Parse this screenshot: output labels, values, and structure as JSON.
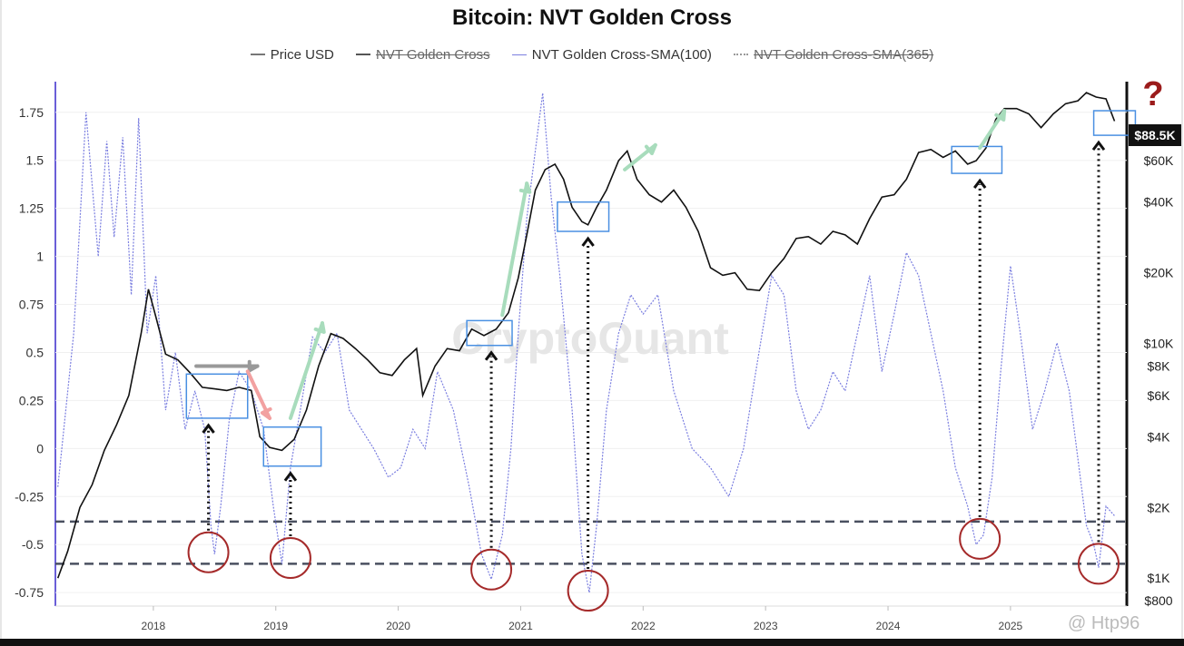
{
  "chart_data": {
    "type": "line",
    "title": "Bitcoin: NVT Golden Cross",
    "legend": [
      {
        "name": "Price USD",
        "hidden": false,
        "color": "#777777"
      },
      {
        "name": "NVT Golden Cross",
        "hidden": true,
        "color": "#555555"
      },
      {
        "name": "NVT Golden Cross-SMA(100)",
        "hidden": false,
        "color": "#7b7fe0"
      },
      {
        "name": "NVT Golden Cross-SMA(365)",
        "hidden": true,
        "color": "#9a9a9a"
      }
    ],
    "legend_position": "top",
    "x_ticks": [
      "2018",
      "2019",
      "2020",
      "2021",
      "2022",
      "2023",
      "2024",
      "2025"
    ],
    "xlim": [
      2017.2,
      2025.95
    ],
    "y_left_ticks": [
      "1.75",
      "1.5",
      "1.25",
      "1",
      "0.75",
      "0.5",
      "0.25",
      "0",
      "-0.25",
      "-0.5",
      "-0.75"
    ],
    "y_left_range": [
      -0.82,
      1.9
    ],
    "y_right_ticks": [
      "$60K",
      "$40K",
      "$20K",
      "$10K",
      "$8K",
      "$6K",
      "$4K",
      "$2K",
      "$1K",
      "$800"
    ],
    "y_right_values": [
      60000,
      40000,
      20000,
      10000,
      8000,
      6000,
      4000,
      2000,
      1000,
      800
    ],
    "y_right_scale": "log",
    "y_right_range": [
      760,
      128000
    ],
    "current_price_label": "$88.5K",
    "current_price": 88500,
    "threshold_lines": [
      -0.38,
      -0.6
    ],
    "series": [
      {
        "name": "NVT Golden Cross-SMA(100)",
        "axis": "left",
        "x": [
          2017.22,
          2017.35,
          2017.45,
          2017.55,
          2017.62,
          2017.68,
          2017.75,
          2017.82,
          2017.88,
          2017.95,
          2018.02,
          2018.1,
          2018.18,
          2018.26,
          2018.34,
          2018.42,
          2018.47,
          2018.5,
          2018.55,
          2018.62,
          2018.7,
          2018.8,
          2018.9,
          2018.98,
          2019.05,
          2019.12,
          2019.2,
          2019.3,
          2019.4,
          2019.5,
          2019.6,
          2019.7,
          2019.8,
          2019.92,
          2020.02,
          2020.12,
          2020.22,
          2020.32,
          2020.45,
          2020.58,
          2020.68,
          2020.76,
          2020.85,
          2020.92,
          2020.98,
          2021.05,
          2021.12,
          2021.18,
          2021.25,
          2021.32,
          2021.42,
          2021.5,
          2021.56,
          2021.62,
          2021.7,
          2021.8,
          2021.9,
          2022.0,
          2022.12,
          2022.25,
          2022.4,
          2022.55,
          2022.7,
          2022.82,
          2022.92,
          2023.05,
          2023.15,
          2023.25,
          2023.35,
          2023.45,
          2023.55,
          2023.65,
          2023.75,
          2023.85,
          2023.95,
          2024.05,
          2024.15,
          2024.25,
          2024.35,
          2024.45,
          2024.55,
          2024.65,
          2024.72,
          2024.78,
          2024.85,
          2024.92,
          2025.0,
          2025.08,
          2025.18,
          2025.28,
          2025.38,
          2025.48,
          2025.56,
          2025.62,
          2025.68,
          2025.72,
          2025.78,
          2025.85
        ],
        "values": [
          -0.2,
          0.6,
          1.75,
          1.0,
          1.6,
          1.1,
          1.62,
          0.8,
          1.72,
          0.6,
          0.9,
          0.2,
          0.5,
          0.1,
          0.3,
          0.1,
          -0.4,
          -0.55,
          -0.3,
          0.15,
          0.4,
          0.3,
          0.1,
          -0.3,
          -0.6,
          -0.1,
          0.2,
          0.58,
          0.5,
          0.6,
          0.2,
          0.1,
          0.0,
          -0.15,
          -0.1,
          0.1,
          0.0,
          0.4,
          0.2,
          -0.2,
          -0.55,
          -0.68,
          -0.45,
          0.0,
          0.6,
          1.2,
          1.55,
          1.85,
          1.3,
          0.9,
          0.2,
          -0.55,
          -0.75,
          -0.4,
          0.2,
          0.6,
          0.8,
          0.7,
          0.8,
          0.3,
          0.0,
          -0.1,
          -0.25,
          0.0,
          0.4,
          0.9,
          0.8,
          0.3,
          0.1,
          0.2,
          0.4,
          0.3,
          0.6,
          0.9,
          0.4,
          0.7,
          1.02,
          0.9,
          0.6,
          0.3,
          -0.1,
          -0.3,
          -0.5,
          -0.45,
          -0.15,
          0.4,
          0.95,
          0.6,
          0.1,
          0.3,
          0.55,
          0.3,
          -0.1,
          -0.4,
          -0.5,
          -0.62,
          -0.3,
          -0.35
        ]
      },
      {
        "name": "Price USD",
        "axis": "right",
        "x": [
          2017.22,
          2017.3,
          2017.4,
          2017.5,
          2017.6,
          2017.7,
          2017.8,
          2017.9,
          2017.96,
          2018.02,
          2018.1,
          2018.2,
          2018.3,
          2018.4,
          2018.5,
          2018.6,
          2018.7,
          2018.8,
          2018.87,
          2018.95,
          2019.05,
          2019.15,
          2019.25,
          2019.35,
          2019.45,
          2019.55,
          2019.65,
          2019.75,
          2019.85,
          2019.95,
          2020.05,
          2020.15,
          2020.2,
          2020.3,
          2020.4,
          2020.5,
          2020.6,
          2020.7,
          2020.8,
          2020.9,
          2020.98,
          2021.05,
          2021.12,
          2021.2,
          2021.28,
          2021.35,
          2021.42,
          2021.5,
          2021.55,
          2021.62,
          2021.7,
          2021.8,
          2021.87,
          2021.95,
          2022.05,
          2022.15,
          2022.25,
          2022.35,
          2022.45,
          2022.55,
          2022.65,
          2022.75,
          2022.85,
          2022.95,
          2023.05,
          2023.15,
          2023.25,
          2023.35,
          2023.45,
          2023.55,
          2023.65,
          2023.75,
          2023.85,
          2023.95,
          2024.05,
          2024.15,
          2024.25,
          2024.35,
          2024.45,
          2024.55,
          2024.65,
          2024.72,
          2024.8,
          2024.88,
          2024.95,
          2025.05,
          2025.15,
          2025.25,
          2025.35,
          2025.45,
          2025.55,
          2025.62,
          2025.7,
          2025.78,
          2025.85
        ],
        "values": [
          1000,
          1300,
          2000,
          2500,
          3500,
          4500,
          6000,
          11000,
          17000,
          13000,
          9000,
          8500,
          7500,
          6500,
          6400,
          6300,
          6500,
          6300,
          4000,
          3600,
          3500,
          3900,
          5200,
          8000,
          11000,
          10500,
          9500,
          8500,
          7500,
          7300,
          8500,
          9500,
          6000,
          8000,
          9500,
          9300,
          11500,
          10800,
          11500,
          13500,
          19000,
          29000,
          45000,
          55000,
          58000,
          50000,
          38000,
          33000,
          32000,
          38000,
          45000,
          60000,
          66000,
          50000,
          43000,
          40000,
          45000,
          38000,
          30000,
          21000,
          19500,
          20000,
          17000,
          16800,
          20000,
          23000,
          28000,
          28500,
          26500,
          30000,
          29000,
          26500,
          34000,
          42000,
          43000,
          50000,
          65000,
          67000,
          62000,
          66000,
          58000,
          60000,
          68000,
          90000,
          100000,
          100000,
          95000,
          83000,
          95000,
          105000,
          108000,
          117000,
          112000,
          110000,
          88500
        ]
      }
    ],
    "annotations": {
      "watermark": "CryptoQuant",
      "question_mark": "?",
      "credit": "@ Htp96",
      "trough_circles": [
        {
          "x": 2018.45,
          "y": -0.54
        },
        {
          "x": 2019.12,
          "y": -0.57
        },
        {
          "x": 2020.76,
          "y": -0.63
        },
        {
          "x": 2021.55,
          "y": -0.74
        },
        {
          "x": 2024.75,
          "y": -0.47
        },
        {
          "x": 2025.72,
          "y": -0.6
        }
      ],
      "price_boxes": [
        {
          "x0": 2018.27,
          "x1": 2018.77,
          "p0": 4800,
          "p1": 7400
        },
        {
          "x0": 2018.9,
          "x1": 2019.37,
          "p0": 3000,
          "p1": 4400
        },
        {
          "x0": 2020.56,
          "x1": 2020.93,
          "p0": 9800,
          "p1": 12500
        },
        {
          "x0": 2021.3,
          "x1": 2021.72,
          "p0": 30000,
          "p1": 40000
        },
        {
          "x0": 2024.52,
          "x1": 2024.93,
          "p0": 53000,
          "p1": 69000
        },
        {
          "x0": 2025.68,
          "x1": 2026.02,
          "p0": 77000,
          "p1": 98000
        }
      ],
      "arrows": [
        {
          "from": [
            2018.35,
            8000
          ],
          "to": [
            2018.85,
            8000
          ],
          "color": "#999999"
        },
        {
          "from": [
            2018.77,
            7600
          ],
          "to": [
            2018.95,
            4800
          ],
          "color": "#f2a1a1"
        },
        {
          "from": [
            2019.12,
            4800
          ],
          "to": [
            2019.38,
            12200
          ],
          "color": "#a8dcbc"
        },
        {
          "from": [
            2020.85,
            13200
          ],
          "to": [
            2021.05,
            48000
          ],
          "color": "#a8dcbc"
        },
        {
          "from": [
            2021.85,
            55000
          ],
          "to": [
            2022.1,
            70000
          ],
          "color": "#a8dcbc"
        },
        {
          "from": [
            2024.75,
            68000
          ],
          "to": [
            2024.95,
            98000
          ],
          "color": "#a8dcbc"
        }
      ]
    }
  }
}
